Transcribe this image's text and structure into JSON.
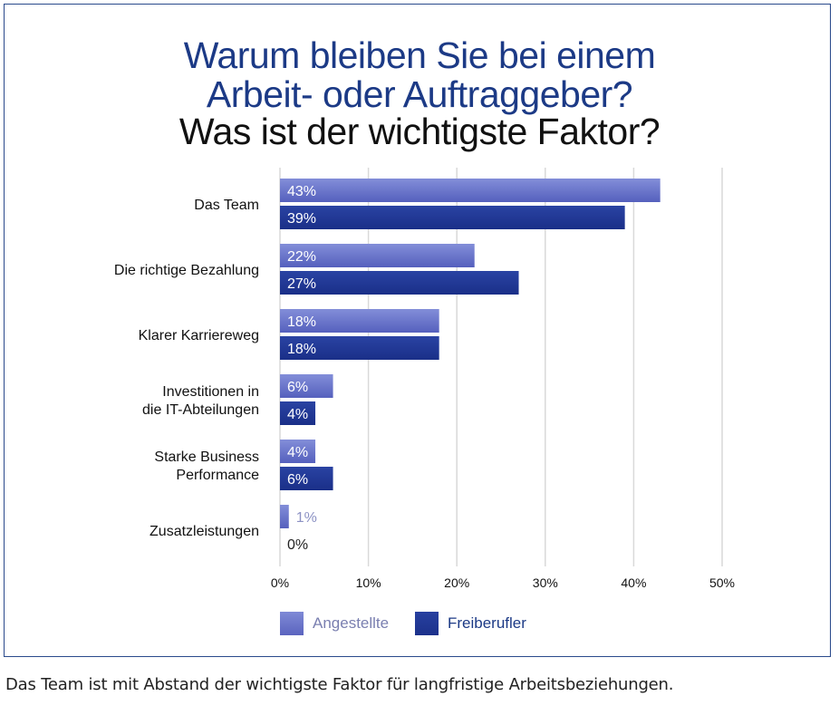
{
  "title": {
    "line1": "Warum bleiben Sie bei einem",
    "line2": "Arbeit- oder Auftraggeber?",
    "line3": "Was ist der wichtigste Faktor?"
  },
  "caption": "Das Team ist mit Abstand der wichtigste Faktor für langfristige Arbeitsbeziehungen.",
  "colors": {
    "angestellte": "#5d67c2",
    "freiberufler": "#1f3592",
    "title_blue": "#1c3a86",
    "grid": "#dddddd"
  },
  "chart_data": {
    "type": "bar",
    "orientation": "horizontal",
    "categories": [
      [
        "Das Team"
      ],
      [
        "Die richtige Bezahlung"
      ],
      [
        "Klarer Karriereweg"
      ],
      [
        "Investitionen in",
        "die IT-Abteilungen"
      ],
      [
        "Starke Business",
        "Performance"
      ],
      [
        "Zusatzleistungen"
      ]
    ],
    "series": [
      {
        "name": "Angestellte",
        "values": [
          43,
          22,
          18,
          6,
          4,
          1
        ],
        "labels": [
          "43%",
          "22%",
          "18%",
          "6%",
          "4%",
          "1%"
        ]
      },
      {
        "name": "Freiberufler",
        "values": [
          39,
          27,
          18,
          4,
          6,
          0
        ],
        "labels": [
          "39%",
          "27%",
          "18%",
          "4%",
          "6%",
          "0%"
        ]
      }
    ],
    "xlim": [
      0,
      50
    ],
    "xticks": [
      "0%",
      "10%",
      "20%",
      "30%",
      "40%",
      "50%"
    ],
    "grid": true,
    "legend_position": "bottom"
  }
}
